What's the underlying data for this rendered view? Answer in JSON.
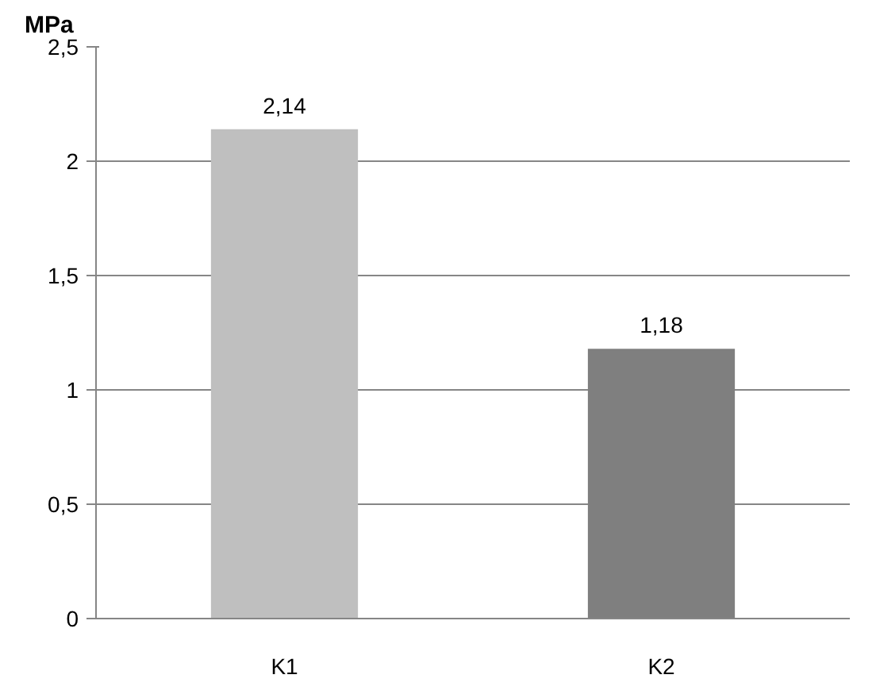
{
  "chart_data": {
    "type": "bar",
    "ylabel": "MPa",
    "categories": [
      "K1",
      "K2"
    ],
    "values": [
      2.14,
      1.18
    ],
    "colors": [
      "#bfbfbf",
      "#7f7f7f"
    ],
    "value_labels": [
      "2,14",
      "1,18"
    ],
    "ylim": [
      0,
      2.5
    ],
    "yticks": [
      0,
      {
        "value": 0.5,
        "label": "0,5"
      },
      1,
      {
        "value": 1.5,
        "label": "1,5"
      },
      2,
      {
        "value": 2.5,
        "label": "2,5"
      }
    ],
    "grid": "y"
  }
}
